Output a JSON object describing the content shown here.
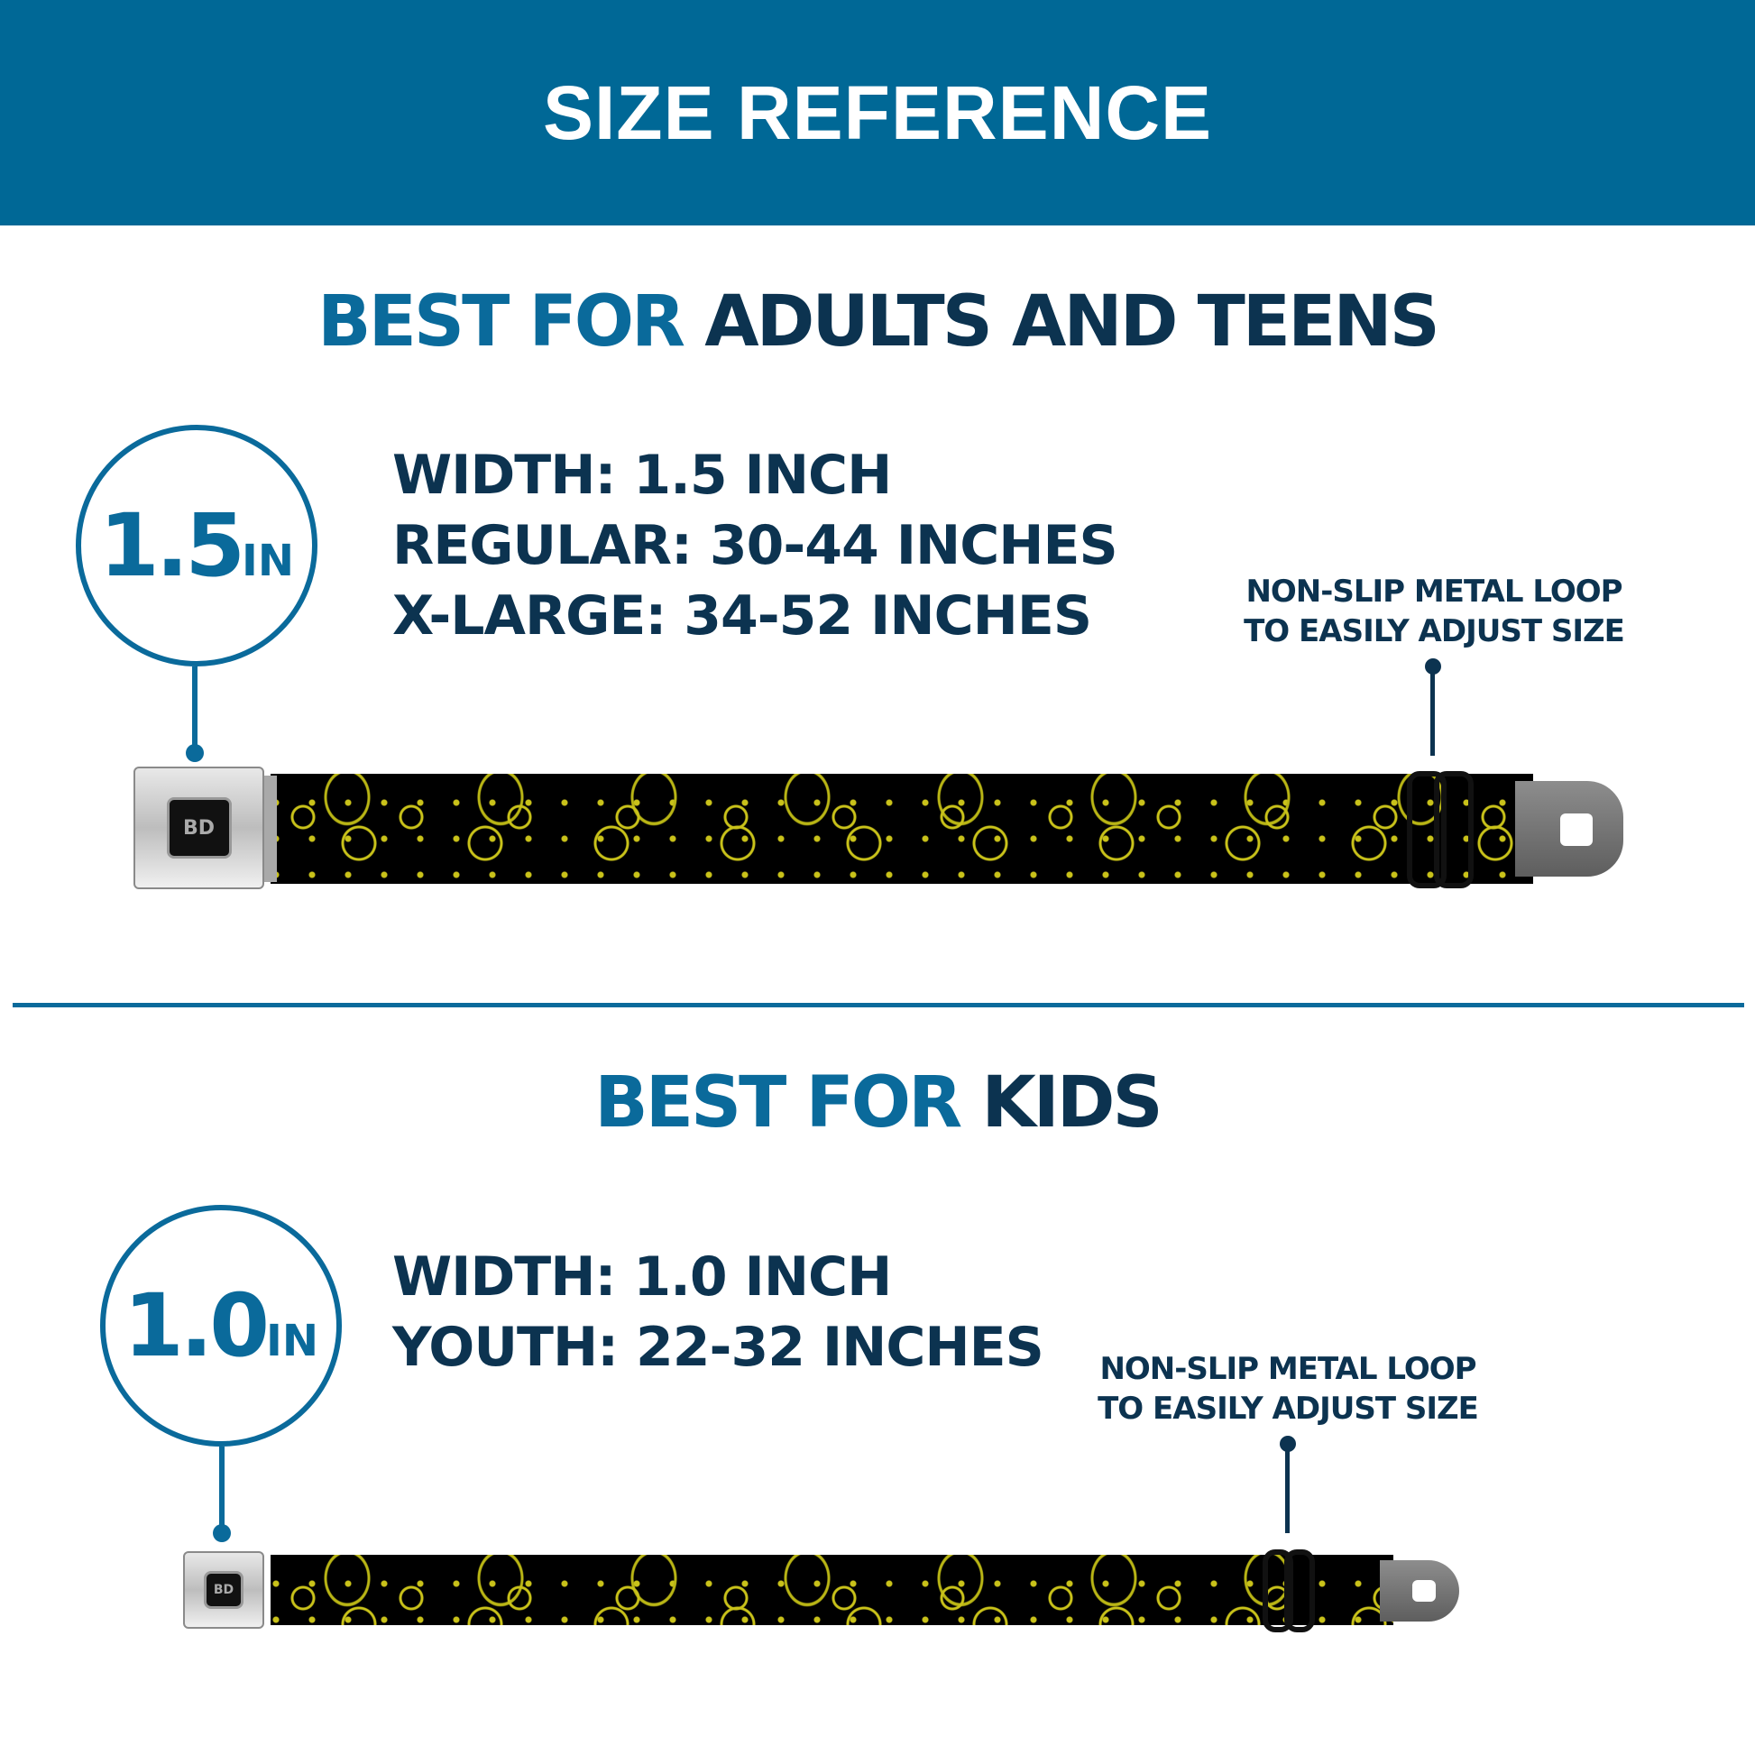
{
  "header": {
    "title": "SIZE REFERENCE"
  },
  "adults": {
    "heading_accent": "BEST FOR",
    "heading_main": "ADULTS AND TEENS",
    "badge_value": "1.5",
    "badge_unit": "IN",
    "specs": [
      "WIDTH: 1.5 INCH",
      "REGULAR: 30-44 INCHES",
      "X-LARGE: 34-52 INCHES"
    ],
    "callout": [
      "NON-SLIP METAL LOOP",
      "TO EASILY ADJUST SIZE"
    ],
    "logo": "BD"
  },
  "kids": {
    "heading_accent": "BEST FOR",
    "heading_main": "KIDS",
    "badge_value": "1.0",
    "badge_unit": "IN",
    "specs": [
      "WIDTH: 1.0 INCH",
      "YOUTH: 22-32 INCHES"
    ],
    "callout": [
      "NON-SLIP METAL LOOP",
      "TO EASILY ADJUST SIZE"
    ],
    "logo": "BD"
  },
  "colors": {
    "header": "#006896",
    "accent": "#0a6a9b",
    "text": "#0c3350",
    "strap_pattern": "#c9c21a"
  }
}
